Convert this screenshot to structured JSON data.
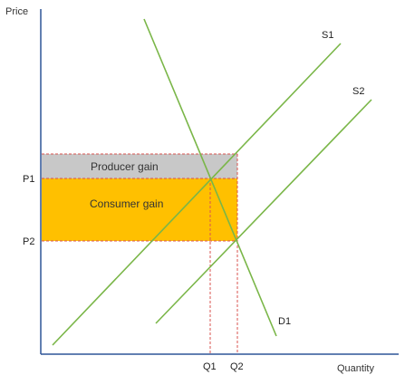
{
  "axes": {
    "y_label": "Price",
    "x_label": "Quantity"
  },
  "price_levels": {
    "p1": "P1",
    "p2": "P2"
  },
  "quantity_levels": {
    "q1": "Q1",
    "q2": "Q2"
  },
  "curves": {
    "s1": "S1",
    "s2": "S2",
    "d1": "D1"
  },
  "regions": {
    "producer_gain": "Producer gain",
    "consumer_gain": "Consumer gain"
  },
  "colors": {
    "curve": "#7ab648",
    "producer_fill": "#c8c8c8",
    "consumer_fill": "#ffc000",
    "dashed_line": "#d9534f",
    "axis": "#2f5597"
  }
}
